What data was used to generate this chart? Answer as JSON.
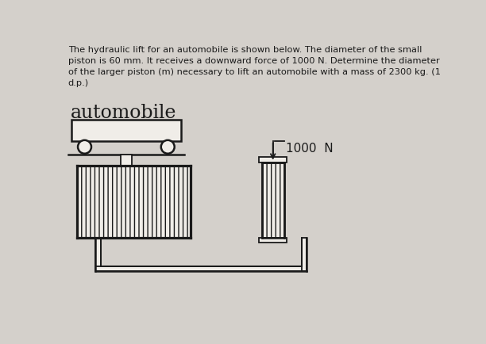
{
  "bg_color": "#d4d0cb",
  "text_header_lines": [
    "The hydraulic lift for an automobile is shown below. The diameter of the small",
    "piston is 60 mm. It receives a downward force of 1000 N. Determine the diameter",
    "of the larger piston (m) necessary to lift an automobile with a mass of 2300 kg. (1",
    "d.p.)"
  ],
  "label_automobile": "automobile",
  "label_force": "1000  N",
  "line_color": "#1a1a1a",
  "fill_color": "#f0ede8",
  "hatch_pattern": "|||"
}
